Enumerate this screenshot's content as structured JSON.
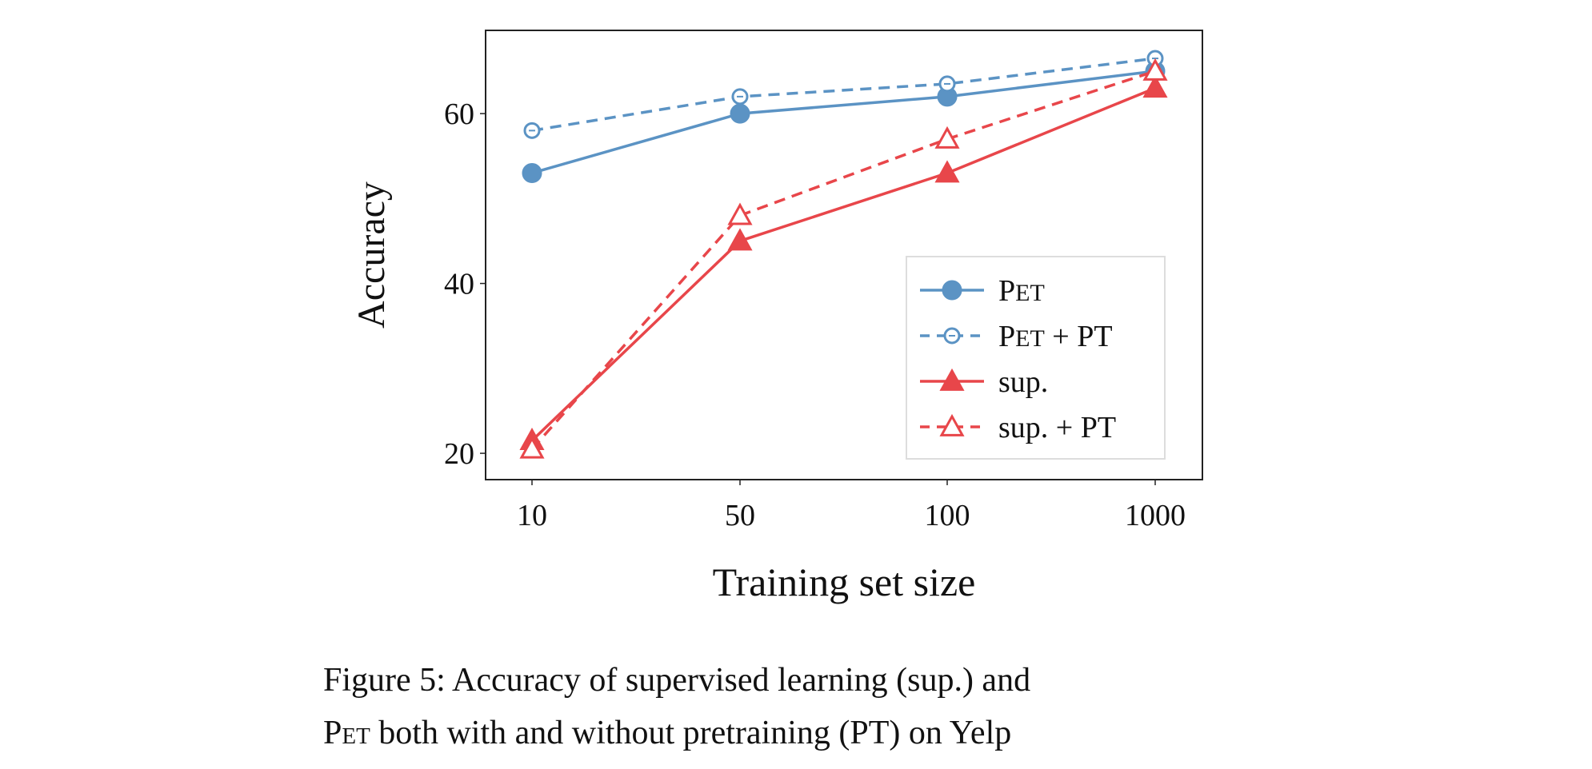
{
  "chart_data": {
    "type": "line",
    "title": "",
    "xlabel": "Training set size",
    "ylabel": "Accuracy",
    "categories": [
      "10",
      "50",
      "100",
      "1000"
    ],
    "yticks": [
      20,
      40,
      60
    ],
    "ylim": [
      16.9,
      69.8
    ],
    "grid": false,
    "legend_placement": "lower-right",
    "series": [
      {
        "name": "PET",
        "style": "solid",
        "marker": "filled-circle",
        "color": "#5b93c4",
        "values": [
          53,
          60,
          62,
          65
        ]
      },
      {
        "name": "PET + PT",
        "style": "dashed",
        "marker": "open-circle",
        "color": "#5b93c4",
        "values": [
          58,
          62,
          63.5,
          66.5
        ]
      },
      {
        "name": "sup.",
        "style": "solid",
        "marker": "filled-triangle",
        "color": "#e8464a",
        "values": [
          21.5,
          45,
          53,
          63
        ]
      },
      {
        "name": "sup. + PT",
        "style": "dashed",
        "marker": "open-triangle",
        "color": "#e8464a",
        "values": [
          20.5,
          48,
          57,
          65
        ]
      }
    ]
  },
  "caption": {
    "line1": "Figure 5:  Accuracy of supervised learning (sup.)  and",
    "line2_sc": "Pet",
    "line2_rest": " both with and without pretraining (PT) on Yelp"
  }
}
